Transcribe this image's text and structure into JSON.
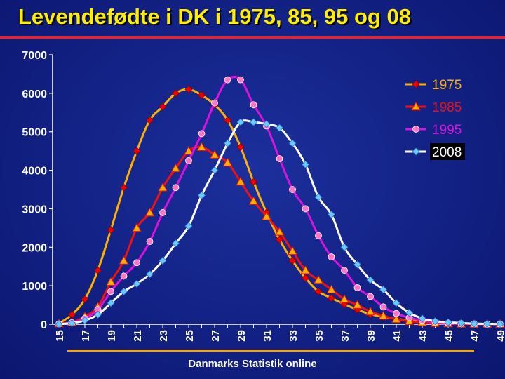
{
  "title": "Levendefødte i DK i 1975, 85, 95 og 08",
  "source": "Danmarks Statistik online",
  "chart_data": {
    "type": "line",
    "x": [
      15,
      16,
      17,
      18,
      19,
      20,
      21,
      22,
      23,
      24,
      25,
      26,
      27,
      28,
      29,
      30,
      31,
      32,
      33,
      34,
      35,
      36,
      37,
      38,
      39,
      40,
      41,
      42,
      43,
      44,
      45,
      46,
      47,
      48,
      49
    ],
    "x_tick_labels": [
      "15",
      "17",
      "19",
      "21",
      "23",
      "25",
      "27",
      "29",
      "31",
      "33",
      "35",
      "37",
      "39",
      "41",
      "43",
      "45",
      "47",
      "49"
    ],
    "ylim": [
      0,
      7000
    ],
    "y_ticks": [
      0,
      1000,
      2000,
      3000,
      4000,
      5000,
      6000,
      7000
    ],
    "y_tick_labels": [
      "0",
      "1000",
      "2000",
      "3000",
      "4000",
      "5000",
      "6000",
      "7000"
    ],
    "grid": false,
    "legend_position": "top-right",
    "series": [
      {
        "name": "1975",
        "color": "#ffb000",
        "marker_color": "#ee0000",
        "marker": "diamond",
        "values": [
          20,
          250,
          650,
          1400,
          2450,
          3550,
          4500,
          5300,
          5650,
          6000,
          6100,
          5950,
          5700,
          5300,
          4600,
          3700,
          2900,
          2200,
          1650,
          1200,
          850,
          680,
          520,
          380,
          260,
          190,
          140,
          100,
          70,
          40,
          30,
          15,
          10,
          5,
          5
        ]
      },
      {
        "name": "1985",
        "color": "#ee1111",
        "marker_color": "#ffb000",
        "marker": "triangle",
        "values": [
          20,
          50,
          200,
          450,
          1100,
          1650,
          2500,
          2900,
          3550,
          4050,
          4500,
          4600,
          4400,
          4200,
          3700,
          3200,
          2800,
          2400,
          1900,
          1400,
          1150,
          900,
          650,
          500,
          330,
          220,
          130,
          80,
          50,
          30,
          20,
          10,
          5,
          5,
          5
        ]
      },
      {
        "name": "1995",
        "color": "#dd11dd",
        "marker_color": "#ff77cc",
        "marker": "circle",
        "values": [
          10,
          40,
          150,
          380,
          850,
          1250,
          1600,
          2150,
          2900,
          3550,
          4250,
          4950,
          5750,
          6350,
          6350,
          5700,
          5150,
          4300,
          3500,
          3000,
          2300,
          1750,
          1400,
          950,
          720,
          450,
          280,
          170,
          100,
          60,
          30,
          20,
          10,
          5,
          5
        ]
      },
      {
        "name": "2008",
        "color": "#ffffff",
        "marker_color": "#66ccff",
        "marker": "diamond",
        "values": [
          5,
          30,
          100,
          250,
          550,
          850,
          1050,
          1300,
          1650,
          2100,
          2550,
          3350,
          4000,
          4700,
          5250,
          5250,
          5200,
          5100,
          4700,
          4150,
          3300,
          2850,
          2000,
          1550,
          1150,
          900,
          550,
          300,
          150,
          80,
          50,
          30,
          15,
          10,
          5
        ]
      }
    ]
  }
}
